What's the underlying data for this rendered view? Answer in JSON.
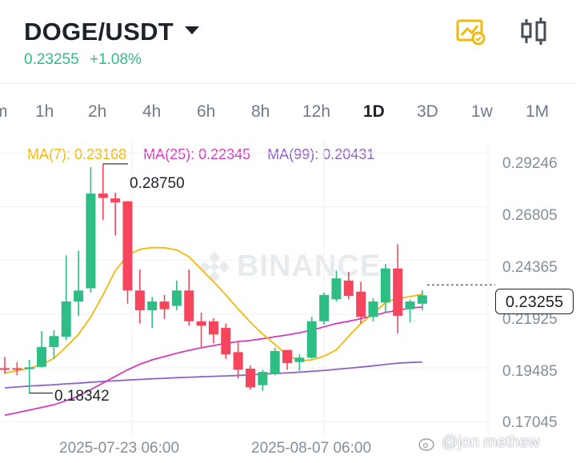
{
  "header": {
    "pair": "DOGE/USDT",
    "last_price": "0.23255",
    "change_pct": "+1.08%"
  },
  "colors": {
    "up": "#2ebd85",
    "down": "#f6465d",
    "ma7": "#f0b90b",
    "ma25": "#d63bbd",
    "ma99": "#8e63c9",
    "accent": "#f0b90b"
  },
  "icons": {
    "chart_settings": "chart-settings-icon",
    "candle_type": "candlestick-icon",
    "watermark": "binance-logo-icon"
  },
  "timeframes": [
    {
      "label": "m",
      "active": false
    },
    {
      "label": "1h",
      "active": false
    },
    {
      "label": "2h",
      "active": false
    },
    {
      "label": "4h",
      "active": false
    },
    {
      "label": "6h",
      "active": false
    },
    {
      "label": "8h",
      "active": false
    },
    {
      "label": "12h",
      "active": false
    },
    {
      "label": "1D",
      "active": true
    },
    {
      "label": "3D",
      "active": false
    },
    {
      "label": "1w",
      "active": false
    },
    {
      "label": "1M",
      "active": false
    }
  ],
  "ma_legend": {
    "ma7": "MA(7): 0.23168",
    "ma25": "MA(25): 0.22345",
    "ma99": "MA(99): 0.20431"
  },
  "y_axis": [
    "0.29246",
    "0.26805",
    "0.24365",
    "0.21925",
    "0.19485",
    "0.17045"
  ],
  "current_price_tag": "0.23255",
  "x_axis": [
    "2025-07-23 06:00",
    "2025-08-07 06:00"
  ],
  "annotations": {
    "high": "0.28750",
    "low": "0.18342"
  },
  "watermark_text": "BINANCE",
  "credit": "@jon methew",
  "chart_data": {
    "type": "candlestick",
    "ylim": [
      0.164,
      0.298
    ],
    "candles": [
      {
        "o": 0.1947,
        "h": 0.1998,
        "l": 0.1921,
        "c": 0.1942
      },
      {
        "o": 0.1947,
        "h": 0.1975,
        "l": 0.1915,
        "c": 0.1941
      },
      {
        "o": 0.1943,
        "h": 0.1985,
        "l": 0.1834,
        "c": 0.1951
      },
      {
        "o": 0.1953,
        "h": 0.2115,
        "l": 0.195,
        "c": 0.2043
      },
      {
        "o": 0.2043,
        "h": 0.212,
        "l": 0.199,
        "c": 0.2093
      },
      {
        "o": 0.209,
        "h": 0.246,
        "l": 0.2075,
        "c": 0.225
      },
      {
        "o": 0.225,
        "h": 0.248,
        "l": 0.2185,
        "c": 0.23
      },
      {
        "o": 0.231,
        "h": 0.286,
        "l": 0.229,
        "c": 0.274
      },
      {
        "o": 0.274,
        "h": 0.2875,
        "l": 0.262,
        "c": 0.272
      },
      {
        "o": 0.2718,
        "h": 0.2745,
        "l": 0.255,
        "c": 0.27
      },
      {
        "o": 0.2705,
        "h": 0.2705,
        "l": 0.224,
        "c": 0.23
      },
      {
        "o": 0.23,
        "h": 0.2395,
        "l": 0.215,
        "c": 0.221
      },
      {
        "o": 0.221,
        "h": 0.227,
        "l": 0.213,
        "c": 0.225
      },
      {
        "o": 0.225,
        "h": 0.228,
        "l": 0.217,
        "c": 0.2215
      },
      {
        "o": 0.223,
        "h": 0.2345,
        "l": 0.221,
        "c": 0.23
      },
      {
        "o": 0.23,
        "h": 0.2395,
        "l": 0.214,
        "c": 0.216
      },
      {
        "o": 0.216,
        "h": 0.22,
        "l": 0.204,
        "c": 0.214
      },
      {
        "o": 0.216,
        "h": 0.2175,
        "l": 0.206,
        "c": 0.21
      },
      {
        "o": 0.213,
        "h": 0.215,
        "l": 0.199,
        "c": 0.201
      },
      {
        "o": 0.202,
        "h": 0.207,
        "l": 0.19,
        "c": 0.194
      },
      {
        "o": 0.1945,
        "h": 0.196,
        "l": 0.185,
        "c": 0.186
      },
      {
        "o": 0.187,
        "h": 0.194,
        "l": 0.1845,
        "c": 0.193
      },
      {
        "o": 0.192,
        "h": 0.204,
        "l": 0.1915,
        "c": 0.2025
      },
      {
        "o": 0.203,
        "h": 0.203,
        "l": 0.194,
        "c": 0.197
      },
      {
        "o": 0.1975,
        "h": 0.201,
        "l": 0.1935,
        "c": 0.1995
      },
      {
        "o": 0.1995,
        "h": 0.218,
        "l": 0.199,
        "c": 0.216
      },
      {
        "o": 0.216,
        "h": 0.229,
        "l": 0.2145,
        "c": 0.228
      },
      {
        "o": 0.226,
        "h": 0.239,
        "l": 0.225,
        "c": 0.2355
      },
      {
        "o": 0.2345,
        "h": 0.2385,
        "l": 0.226,
        "c": 0.2275
      },
      {
        "o": 0.2295,
        "h": 0.234,
        "l": 0.215,
        "c": 0.218
      },
      {
        "o": 0.218,
        "h": 0.2265,
        "l": 0.216,
        "c": 0.225
      },
      {
        "o": 0.2245,
        "h": 0.242,
        "l": 0.22,
        "c": 0.24
      },
      {
        "o": 0.24,
        "h": 0.251,
        "l": 0.2105,
        "c": 0.2185
      },
      {
        "o": 0.2215,
        "h": 0.226,
        "l": 0.2155,
        "c": 0.225
      },
      {
        "o": 0.224,
        "h": 0.23,
        "l": 0.221,
        "c": 0.2278
      }
    ],
    "ma7": [
      0.1925,
      0.1936,
      0.1947,
      0.1962,
      0.1992,
      0.2044,
      0.2101,
      0.218,
      0.228,
      0.239,
      0.246,
      0.2487,
      0.2495,
      0.2494,
      0.2484,
      0.2453,
      0.2396,
      0.234,
      0.228,
      0.2216,
      0.2156,
      0.2102,
      0.2055,
      0.2006,
      0.198,
      0.1985,
      0.2002,
      0.203,
      0.2092,
      0.215,
      0.2195,
      0.2245,
      0.2265,
      0.2272,
      0.2283
    ],
    "ma25": [
      0.1734,
      0.1745,
      0.1757,
      0.1769,
      0.1781,
      0.18,
      0.182,
      0.185,
      0.188,
      0.191,
      0.194,
      0.1965,
      0.1985,
      0.2,
      0.2015,
      0.2028,
      0.204,
      0.205,
      0.206,
      0.2068,
      0.2073,
      0.2081,
      0.209,
      0.2098,
      0.2108,
      0.212,
      0.2135,
      0.215,
      0.216,
      0.2172,
      0.2185,
      0.22,
      0.221,
      0.222,
      0.2225
    ],
    "ma99": [
      0.1858,
      0.1862,
      0.1866,
      0.1869,
      0.1872,
      0.1876,
      0.1879,
      0.1883,
      0.1887,
      0.189,
      0.1893,
      0.1896,
      0.1899,
      0.1901,
      0.1904,
      0.1906,
      0.1908,
      0.191,
      0.1912,
      0.1914,
      0.1917,
      0.192,
      0.1923,
      0.1926,
      0.1929,
      0.1933,
      0.1937,
      0.1942,
      0.1947,
      0.1952,
      0.1958,
      0.1964,
      0.197,
      0.1973,
      0.1975
    ],
    "current_price": 0.23255
  }
}
